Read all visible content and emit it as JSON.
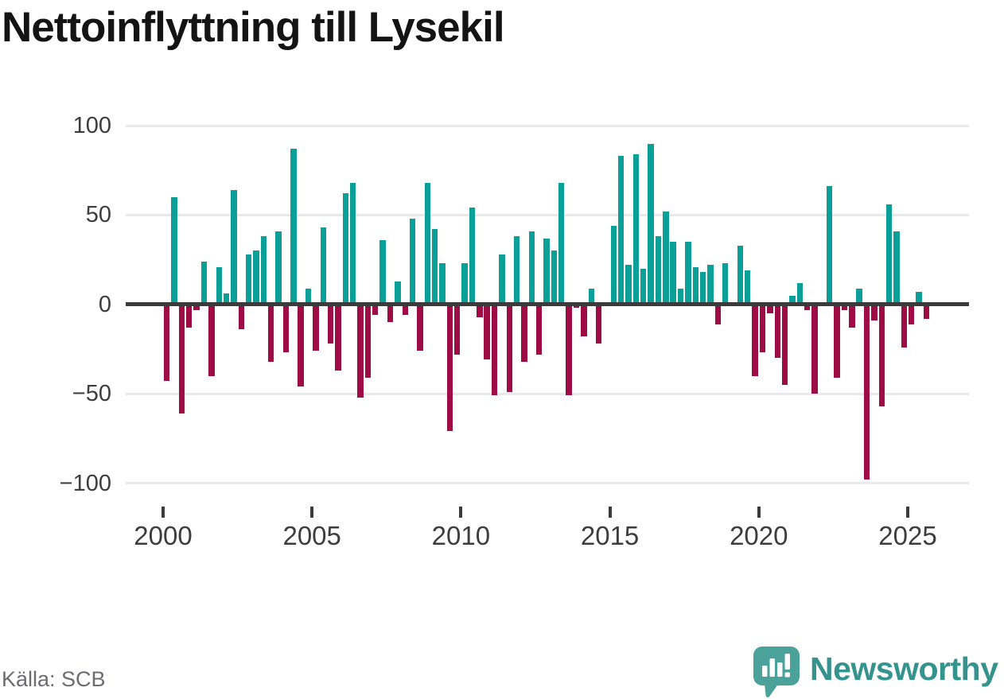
{
  "title": "Nettoinflyttning till Lysekil",
  "source": "Källa: SCB",
  "brand": {
    "name": "Newsworthy",
    "icon": "newsworthy-bubble-chart-icon",
    "text_color": "#34938c",
    "icon_color": "#4ba29b"
  },
  "colors": {
    "positive": "#0a9f97",
    "negative": "#9f0c45",
    "grid": "#e9e9e9",
    "axis": "#3b3b3b",
    "tick_text": "#3d3d3d",
    "title_text": "#141414",
    "source_text": "#6c6c71"
  },
  "chart_data": {
    "type": "bar",
    "title": "Nettoinflyttning till Lysekil",
    "period": "quarterly",
    "start": "2000 Q1",
    "end": "2025 Q3",
    "ylim": [
      -100,
      100
    ],
    "grid": true,
    "yticks": [
      100,
      50,
      0,
      -50,
      -100
    ],
    "ytick_labels": [
      "100",
      "50",
      "0",
      "−50",
      "−100"
    ],
    "xticks": [
      2000,
      2005,
      2010,
      2015,
      2020,
      2025
    ],
    "xtick_labels": [
      "2000",
      "2005",
      "2010",
      "2015",
      "2020",
      "2025"
    ],
    "positive_color": "#0a9f97",
    "negative_color": "#9f0c45",
    "series": [
      {
        "year": 2000,
        "values": [
          -43,
          60,
          -61,
          -13
        ]
      },
      {
        "year": 2001,
        "values": [
          -3,
          24,
          -40,
          21
        ]
      },
      {
        "year": 2002,
        "values": [
          6,
          64,
          -14,
          28
        ]
      },
      {
        "year": 2003,
        "values": [
          30,
          38,
          -32,
          41
        ]
      },
      {
        "year": 2004,
        "values": [
          -27,
          87,
          -46,
          9
        ]
      },
      {
        "year": 2005,
        "values": [
          -26,
          43,
          -22,
          -37
        ]
      },
      {
        "year": 2006,
        "values": [
          62,
          68,
          -52,
          -41
        ]
      },
      {
        "year": 2007,
        "values": [
          -6,
          36,
          -10,
          13
        ]
      },
      {
        "year": 2008,
        "values": [
          -6,
          48,
          -26,
          68
        ]
      },
      {
        "year": 2009,
        "values": [
          42,
          23,
          -71,
          -28
        ]
      },
      {
        "year": 2010,
        "values": [
          23,
          54,
          -7,
          -31
        ]
      },
      {
        "year": 2011,
        "values": [
          -51,
          28,
          -49,
          38
        ]
      },
      {
        "year": 2012,
        "values": [
          -32,
          41,
          -28,
          37
        ]
      },
      {
        "year": 2013,
        "values": [
          30,
          68,
          -51,
          -2
        ]
      },
      {
        "year": 2014,
        "values": [
          -18,
          9,
          -22,
          0
        ]
      },
      {
        "year": 2015,
        "values": [
          44,
          83,
          22,
          84
        ]
      },
      {
        "year": 2016,
        "values": [
          20,
          90,
          38,
          52
        ]
      },
      {
        "year": 2017,
        "values": [
          35,
          9,
          35,
          21
        ]
      },
      {
        "year": 2018,
        "values": [
          18,
          22,
          -11,
          23
        ]
      },
      {
        "year": 2019,
        "values": [
          0,
          33,
          19,
          -40
        ]
      },
      {
        "year": 2020,
        "values": [
          -27,
          -5,
          -30,
          -45
        ]
      },
      {
        "year": 2021,
        "values": [
          5,
          12,
          -3,
          -50
        ]
      },
      {
        "year": 2022,
        "values": [
          0,
          66,
          -41,
          -3
        ]
      },
      {
        "year": 2023,
        "values": [
          -13,
          9,
          -98,
          -9
        ]
      },
      {
        "year": 2024,
        "values": [
          -57,
          56,
          41,
          -24
        ]
      },
      {
        "year": 2025,
        "values": [
          -11,
          7,
          -8
        ]
      }
    ]
  }
}
